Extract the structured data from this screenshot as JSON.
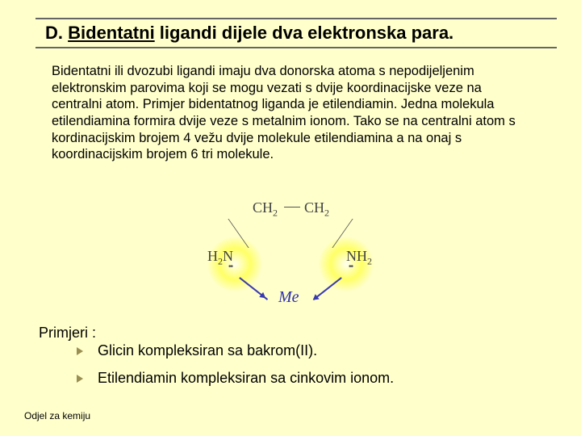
{
  "title": {
    "prefix": "D. ",
    "underlined": "Bidentatni",
    "rest": " ligandi dijele dva elektronska para."
  },
  "body": "Bidentatni ili dvozubi ligandi imaju dva donorska atoma s nepodijeljenim elektronskim parovima koji se mogu vezati s dvije koordinacijske veze na centralni atom. Primjer bidentatnog liganda je etilendiamin. Jedna molekula etilendiamina formira dvije veze s metalnim ionom. Tako se na centralni atom s kordinacijskim brojem 4 vežu dvije molekule etilendiamina a na onaj s koordinacijskim brojem 6 tri molekule.",
  "diagram": {
    "type": "chemical-structure",
    "top_left": "CH",
    "top_left_sub": "2",
    "top_right": "CH",
    "top_right_sub": "2",
    "left_group_h": "H",
    "left_group_sub": "2",
    "left_group_n": "N",
    "right_group_n": "NH",
    "right_group_sub": "2",
    "center_label": "Me",
    "glow_color": "#ffff66",
    "bond_color": "#555555",
    "arrow_color": "#3a3ab0",
    "background_color": "#ffffcc"
  },
  "examples_heading": "Primjeri :",
  "examples": [
    "Glicin kompleksiran sa bakrom(II).",
    "Etilendiamin kompleksiran sa cinkovim ionom."
  ],
  "footer": "Odjel za kemiju",
  "colors": {
    "page_bg": "#ffffcc",
    "rule": "#666666",
    "text": "#000000",
    "bullet": "#9a8f52"
  }
}
